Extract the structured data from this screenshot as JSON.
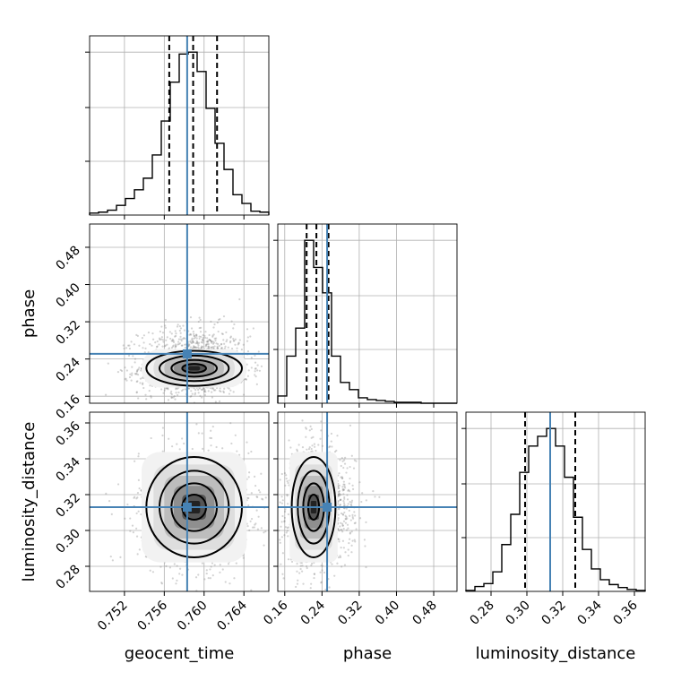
{
  "chart_data": {
    "type": "corner",
    "parameters": [
      {
        "name": "geocent_time",
        "label": "geocent_time",
        "range": [
          0.7485,
          0.7665
        ],
        "ticks": [
          0.752,
          0.756,
          0.76,
          0.764
        ],
        "tick_labels": [
          "0.752",
          "0.756",
          "0.760",
          "0.764"
        ],
        "truth": 0.7583,
        "quantiles": [
          0.7565,
          0.7589,
          0.7613
        ],
        "hist": {
          "start": 0.7485,
          "width": 0.0009,
          "counts": [
            2,
            3,
            5,
            10,
            17,
            26,
            38,
            62,
            97,
            137,
            166,
            168,
            148,
            110,
            74,
            47,
            21,
            12,
            4,
            3
          ]
        }
      },
      {
        "name": "phase",
        "label": "phase",
        "range": [
          0.145,
          0.53
        ],
        "ticks": [
          0.16,
          0.24,
          0.32,
          0.4,
          0.48
        ],
        "tick_labels": [
          "0.16",
          "0.24",
          "0.32",
          "0.40",
          "0.48"
        ],
        "truth": 0.251,
        "quantiles": [
          0.207,
          0.228,
          0.254
        ],
        "hist": {
          "start": 0.145,
          "width": 0.01925,
          "counts": [
            8,
            52,
            83,
            180,
            150,
            122,
            52,
            23,
            15,
            6,
            4,
            3,
            2,
            1,
            1,
            1,
            0,
            0,
            0,
            0
          ]
        }
      },
      {
        "name": "luminosity_distance",
        "label": "luminosity_distance",
        "range": [
          0.266,
          0.366
        ],
        "ticks": [
          0.28,
          0.3,
          0.32,
          0.34,
          0.36
        ],
        "tick_labels": [
          "0.28",
          "0.30",
          "0.32",
          "0.34",
          "0.36"
        ],
        "truth": 0.313,
        "quantiles": [
          0.299,
          0.313,
          0.327
        ],
        "hist": {
          "start": 0.266,
          "width": 0.005,
          "counts": [
            1,
            5,
            8,
            20,
            48,
            79,
            122,
            149,
            159,
            167,
            149,
            117,
            76,
            43,
            23,
            12,
            7,
            4,
            2,
            1
          ]
        }
      }
    ],
    "density_peaks": [
      {
        "x": "geocent_time",
        "y": "phase",
        "x_peak": 0.759,
        "y_peak": 0.22
      },
      {
        "x": "geocent_time",
        "y": "luminosity_distance",
        "x_peak": 0.759,
        "y_peak": 0.313
      },
      {
        "x": "phase",
        "y": "luminosity_distance",
        "x_peak": 0.222,
        "y_peak": 0.313
      }
    ],
    "colors": {
      "truth": "#4682b4",
      "lines": "#000000",
      "grid": "#b0b0b0",
      "samples": "#808080"
    }
  }
}
